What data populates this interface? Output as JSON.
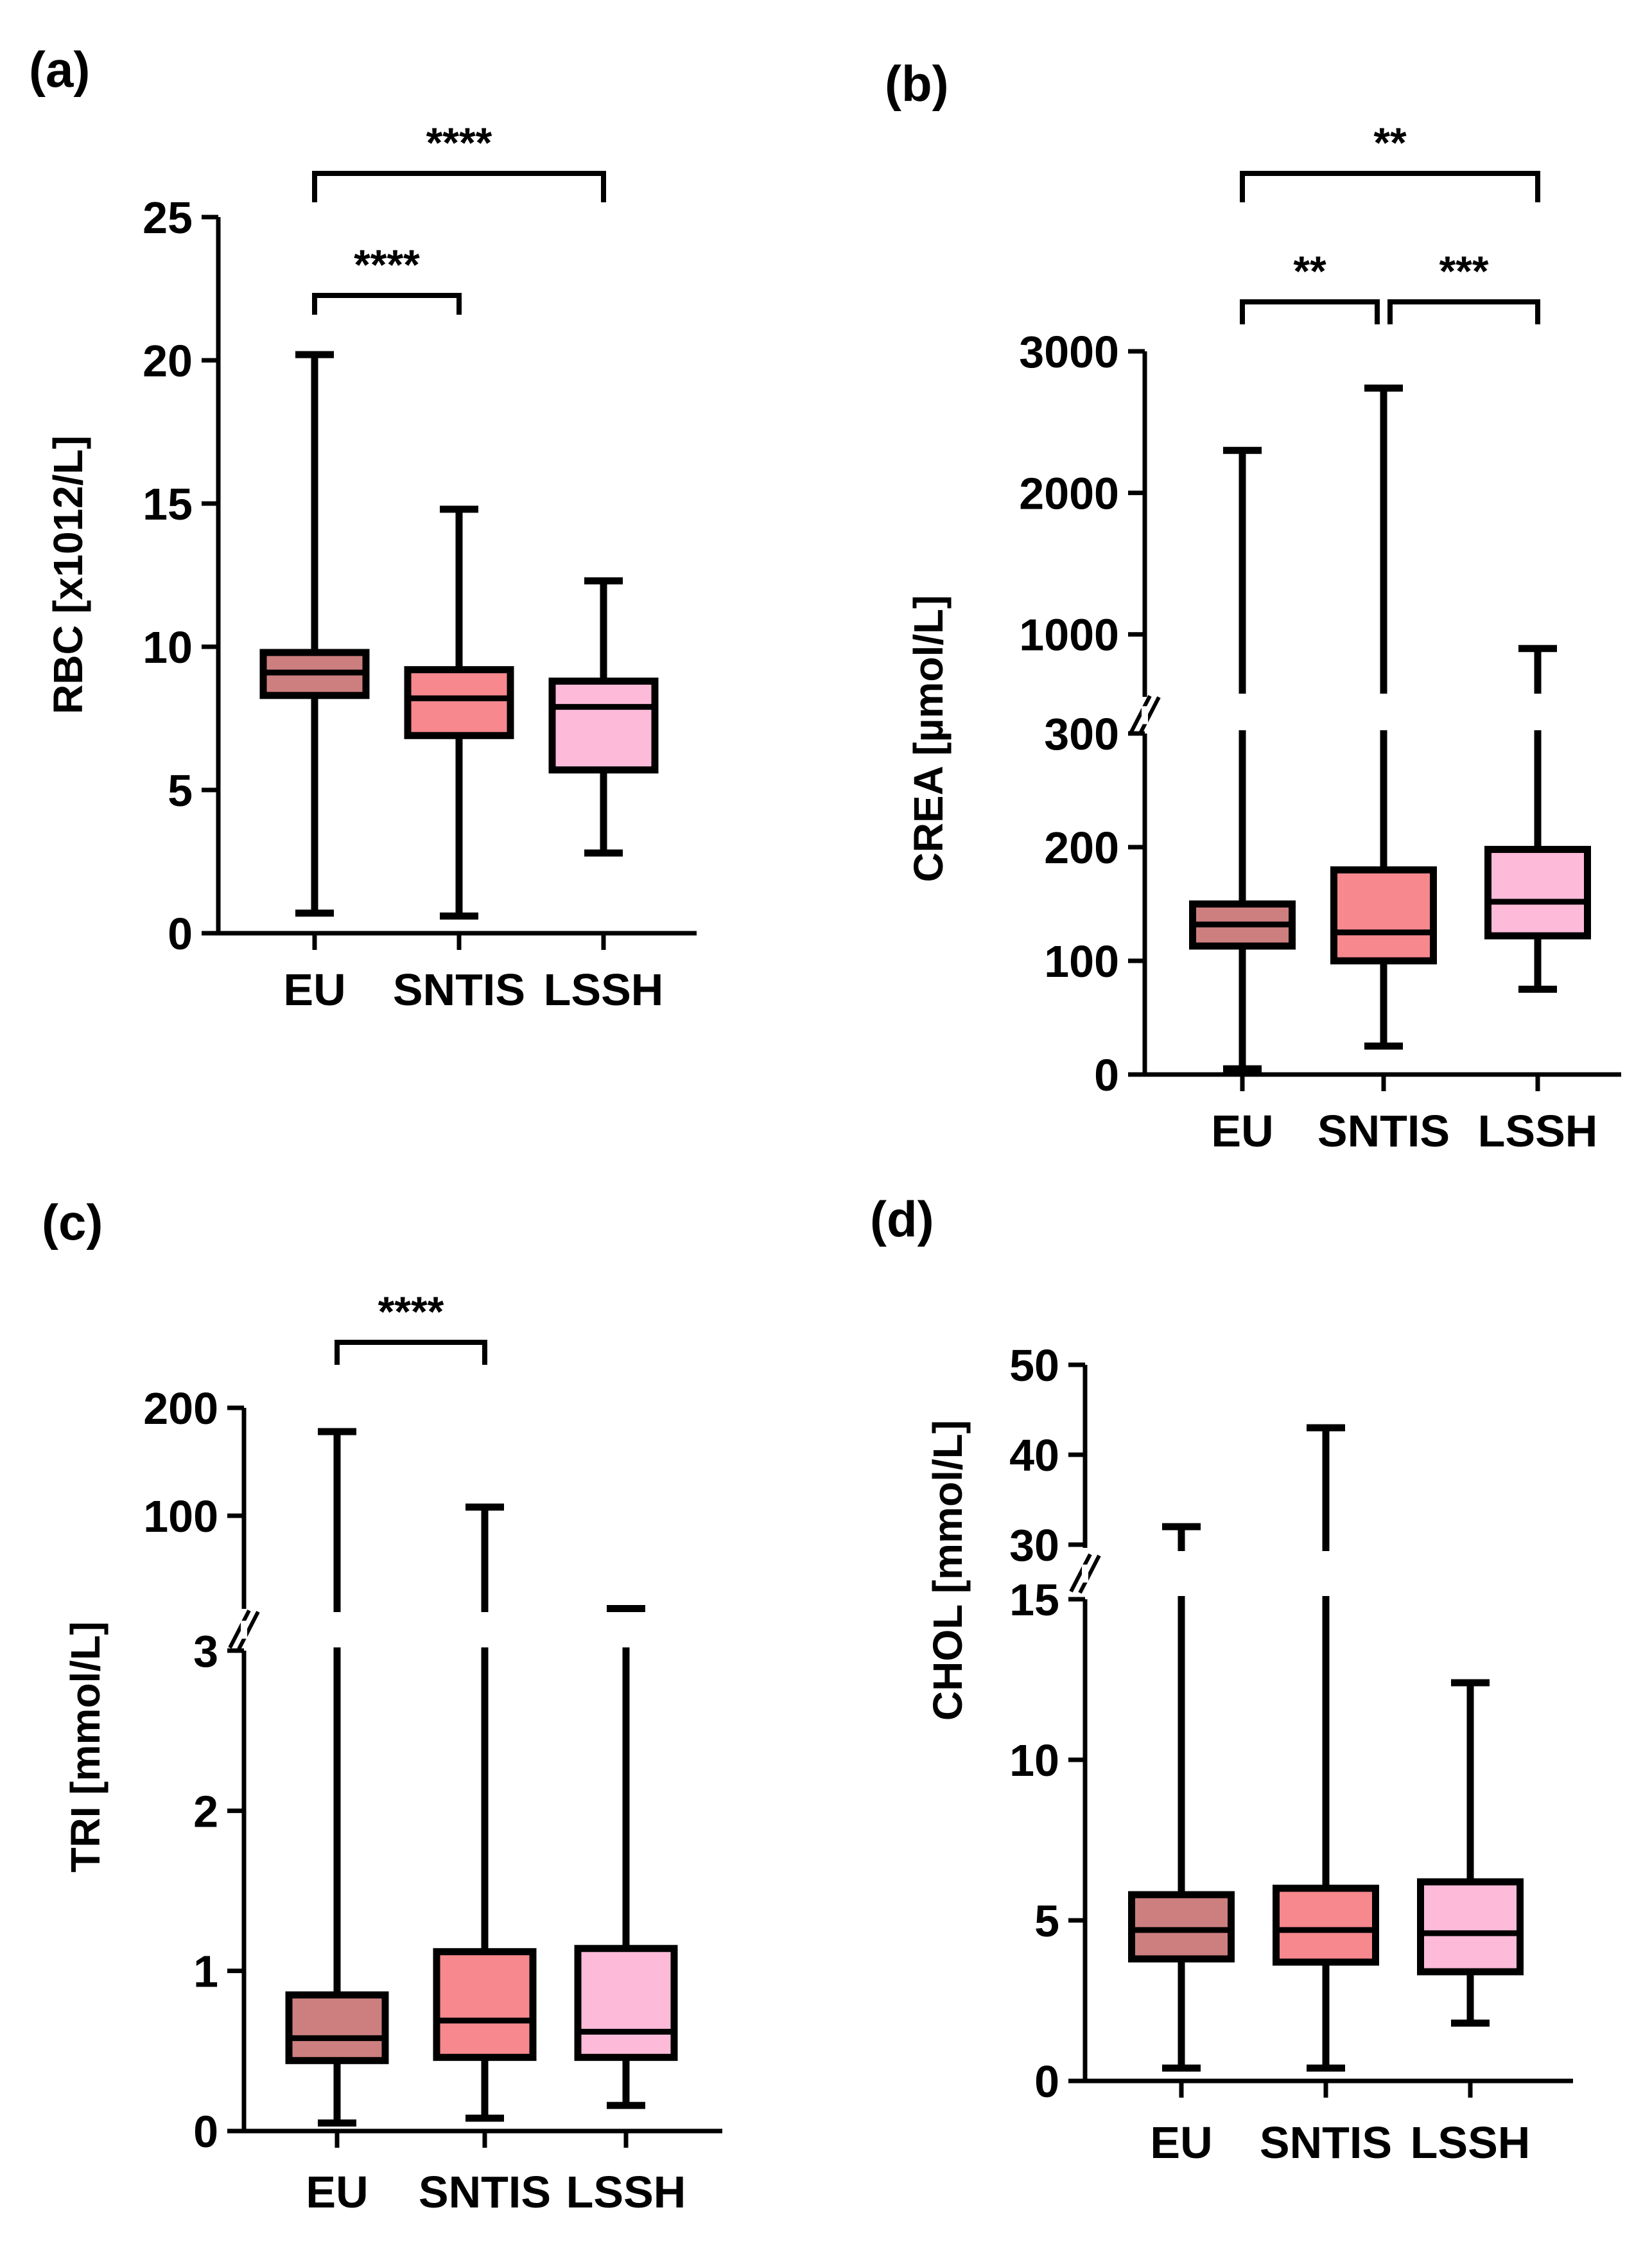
{
  "figure": {
    "title": ""
  },
  "chart_data": [
    {
      "panel": "(a)",
      "type": "boxplot",
      "title": "",
      "xlabel": "",
      "ylabel": "RBC [x1012/L]",
      "categories": [
        "EU",
        "SNTIS",
        "LSSH"
      ],
      "colors": [
        "#cd7f80",
        "#f6888e",
        "#fdbbd9"
      ],
      "ylim": [
        0,
        25
      ],
      "yticks": [
        0,
        5,
        10,
        15,
        20,
        25
      ],
      "boxes": [
        {
          "min": 0.7,
          "q1": 8.3,
          "median": 9.1,
          "q3": 9.8,
          "max": 20.2
        },
        {
          "min": 0.6,
          "q1": 6.9,
          "median": 8.2,
          "q3": 9.2,
          "max": 14.8
        },
        {
          "min": 2.8,
          "q1": 5.7,
          "median": 7.9,
          "q3": 8.8,
          "max": 12.3
        }
      ],
      "significance": [
        {
          "from": 0,
          "to": 1,
          "label": "****"
        },
        {
          "from": 0,
          "to": 2,
          "label": "****"
        }
      ]
    },
    {
      "panel": "(b)",
      "type": "boxplot",
      "title": "",
      "xlabel": "",
      "ylabel": "CREA [µmol/L]",
      "categories": [
        "EU",
        "SNTIS",
        "LSSH"
      ],
      "colors": [
        "#cd7f80",
        "#f6888e",
        "#fdbbd9"
      ],
      "axis_break": {
        "lower": [
          0,
          300
        ],
        "upper": [
          300,
          3000
        ]
      },
      "yticks": [
        0,
        100,
        200,
        300,
        1000,
        2000,
        3000
      ],
      "boxes": [
        {
          "min": 5,
          "q1": 113,
          "median": 132,
          "q3": 150,
          "max": 2300
        },
        {
          "min": 25,
          "q1": 100,
          "median": 125,
          "q3": 180,
          "max": 2740
        },
        {
          "min": 75,
          "q1": 122,
          "median": 152,
          "q3": 198,
          "max": 900
        }
      ],
      "significance": [
        {
          "from": 0,
          "to": 1,
          "label": "**"
        },
        {
          "from": 1,
          "to": 2,
          "label": "***"
        },
        {
          "from": 0,
          "to": 2,
          "label": "**"
        }
      ]
    },
    {
      "panel": "(c)",
      "type": "boxplot",
      "title": "",
      "xlabel": "",
      "ylabel": "TRI [mmol/L]",
      "categories": [
        "EU",
        "SNTIS",
        "LSSH"
      ],
      "colors": [
        "#cd7f80",
        "#f6888e",
        "#fdbbd9"
      ],
      "axis_break": {
        "lower": [
          0,
          3
        ],
        "upper": [
          3,
          200
        ]
      },
      "yticks": [
        0,
        1,
        2,
        3,
        100,
        200
      ],
      "boxes": [
        {
          "min": 0.05,
          "q1": 0.44,
          "median": 0.58,
          "q3": 0.85,
          "max": 178
        },
        {
          "min": 0.08,
          "q1": 0.46,
          "median": 0.69,
          "q3": 1.12,
          "max": 108
        },
        {
          "min": 0.16,
          "q1": 0.46,
          "median": 0.62,
          "q3": 1.14,
          "max": 3.3
        }
      ],
      "significance": [
        {
          "from": 0,
          "to": 1,
          "label": "****"
        }
      ]
    },
    {
      "panel": "(d)",
      "type": "boxplot",
      "title": "",
      "xlabel": "",
      "ylabel": "CHOL [mmol/L]",
      "categories": [
        "EU",
        "SNTIS",
        "LSSH"
      ],
      "colors": [
        "#cd7f80",
        "#f6888e",
        "#fdbbd9"
      ],
      "axis_break": {
        "lower": [
          0,
          15
        ],
        "upper": [
          25,
          50
        ]
      },
      "yticks": [
        0,
        5,
        10,
        15,
        30,
        40,
        50
      ],
      "boxes": [
        {
          "min": 0.4,
          "q1": 3.8,
          "median": 4.7,
          "q3": 5.8,
          "max": 32
        },
        {
          "min": 0.4,
          "q1": 3.7,
          "median": 4.7,
          "q3": 6.0,
          "max": 43
        },
        {
          "min": 1.8,
          "q1": 3.4,
          "median": 4.6,
          "q3": 6.2,
          "max": 12.4
        }
      ],
      "significance": []
    }
  ]
}
